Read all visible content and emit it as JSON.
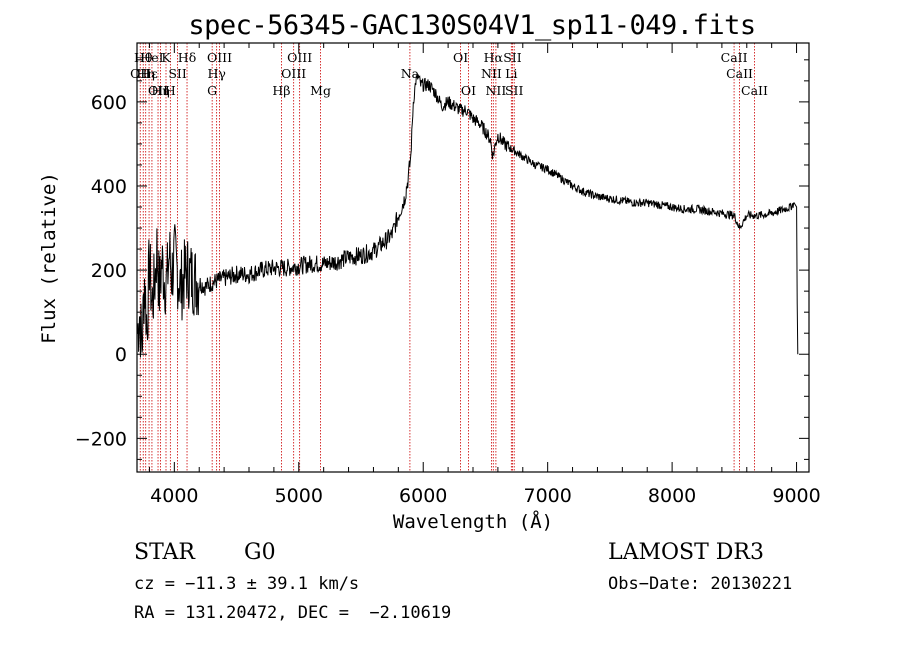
{
  "chart_data": {
    "type": "line",
    "title": "spec-56345-GAC130S04V1_sp11-049.fits",
    "xlabel": "Wavelength (Å)",
    "ylabel": "Flux (relative)",
    "xlim": [
      3700,
      9100
    ],
    "ylim": [
      -280,
      740
    ],
    "xticks": [
      4000,
      5000,
      6000,
      7000,
      8000,
      9000
    ],
    "yticks": [
      -200,
      0,
      200,
      400,
      600
    ],
    "x_tick_labels": [
      "4000",
      "5000",
      "6000",
      "7000",
      "8000",
      "9000"
    ],
    "y_tick_labels": [
      "−200",
      "0",
      "200",
      "400",
      "600"
    ],
    "grid": false,
    "series": [
      {
        "x": [
          3705,
          3720,
          3740,
          3760,
          3780,
          3800,
          3820,
          3840,
          3860,
          3880,
          3900,
          3920,
          3940,
          3960,
          3980,
          4000,
          4050,
          4100,
          4150,
          4200,
          4250,
          4300,
          4350,
          4400,
          4450,
          4500,
          4600,
          4700,
          4800,
          4900,
          5000,
          5100,
          5200,
          5300,
          5400,
          5500,
          5600,
          5700,
          5750,
          5800,
          5850,
          5880,
          5900,
          5920,
          5940,
          5960,
          5980,
          6000,
          6050,
          6100,
          6150,
          6200,
          6250,
          6300,
          6350,
          6400,
          6450,
          6500,
          6540,
          6560,
          6580,
          6600,
          6650,
          6700,
          6750,
          6800,
          6900,
          7000,
          7100,
          7200,
          7300,
          7400,
          7500,
          7600,
          7700,
          7800,
          7900,
          8000,
          8100,
          8200,
          8300,
          8400,
          8500,
          8542,
          8600,
          8700,
          8800,
          8900,
          8950,
          8980,
          9000,
          9005,
          9010
        ],
        "y": [
          50,
          100,
          20,
          180,
          60,
          220,
          120,
          160,
          250,
          150,
          220,
          180,
          170,
          240,
          190,
          230,
          160,
          200,
          180,
          170,
          160,
          170,
          175,
          180,
          185,
          190,
          190,
          200,
          205,
          205,
          210,
          215,
          215,
          220,
          230,
          235,
          245,
          270,
          285,
          330,
          370,
          420,
          470,
          600,
          650,
          660,
          640,
          640,
          640,
          620,
          590,
          600,
          590,
          580,
          580,
          560,
          550,
          530,
          510,
          470,
          500,
          520,
          500,
          490,
          480,
          470,
          450,
          440,
          420,
          400,
          385,
          375,
          370,
          365,
          360,
          360,
          355,
          350,
          345,
          345,
          340,
          335,
          330,
          300,
          330,
          330,
          335,
          345,
          350,
          360,
          350,
          120,
          0
        ]
      }
    ],
    "lines": [
      {
        "x": 3726,
        "label": "OII",
        "row": 2
      },
      {
        "x": 3750,
        "label": "Hθ",
        "row": 1
      },
      {
        "x": 3770,
        "label": "Hη",
        "row": 2
      },
      {
        "x": 3797,
        "label": "Hε",
        "row": 2
      },
      {
        "x": 3820,
        "label": "HeI",
        "row": 1
      },
      {
        "x": 3869,
        "label": "OII",
        "row": 3
      },
      {
        "x": 3889,
        "label": "Hη",
        "row": 3
      },
      {
        "x": 3933,
        "label": "K",
        "row": 1
      },
      {
        "x": 3968,
        "label": "H",
        "row": 3
      },
      {
        "x": 4026,
        "label": "SII",
        "row": 2
      },
      {
        "x": 4102,
        "label": "Hδ",
        "row": 1
      },
      {
        "x": 4304,
        "label": "G",
        "row": 3
      },
      {
        "x": 4340,
        "label": "Hγ",
        "row": 2
      },
      {
        "x": 4363,
        "label": "OIII",
        "row": 1
      },
      {
        "x": 4861,
        "label": "Hβ",
        "row": 3
      },
      {
        "x": 4959,
        "label": "OIII",
        "row": 2
      },
      {
        "x": 5007,
        "label": "OIII",
        "row": 1
      },
      {
        "x": 5175,
        "label": "Mg",
        "row": 3
      },
      {
        "x": 5893,
        "label": "Na",
        "row": 2
      },
      {
        "x": 6300,
        "label": "OI",
        "row": 1
      },
      {
        "x": 6364,
        "label": "OI",
        "row": 3
      },
      {
        "x": 6548,
        "label": "NII",
        "row": 2
      },
      {
        "x": 6563,
        "label": "Hα",
        "row": 1
      },
      {
        "x": 6584,
        "label": "NII",
        "row": 3
      },
      {
        "x": 6708,
        "label": "Li",
        "row": 2
      },
      {
        "x": 6717,
        "label": "SII",
        "row": 1
      },
      {
        "x": 6731,
        "label": "SII",
        "row": 3
      },
      {
        "x": 8498,
        "label": "CaII",
        "row": 1
      },
      {
        "x": 8542,
        "label": "CaII",
        "row": 2
      },
      {
        "x": 8662,
        "label": "CaII",
        "row": 3
      }
    ]
  },
  "info": {
    "object_class": "STAR",
    "subclass": "G0",
    "survey": "LAMOST DR3",
    "cz": "cz = −11.3 ± 39.1 km/s",
    "obs_date": "Obs−Date: 20130221",
    "coords": "RA = 131.20472, DEC =  −2.10619"
  },
  "colors": {
    "line_marker": "#cc0000",
    "spectrum": "#000000"
  }
}
